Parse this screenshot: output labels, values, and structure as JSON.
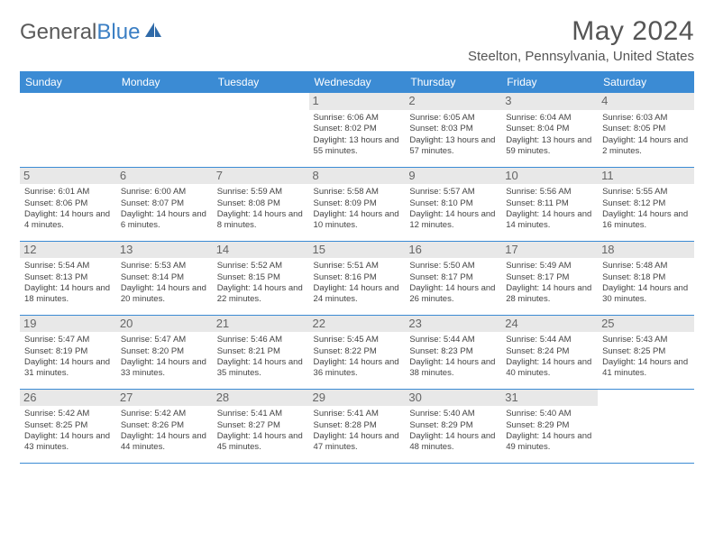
{
  "logo": {
    "text1": "General",
    "text2": "Blue"
  },
  "title": "May 2024",
  "location": "Steelton, Pennsylvania, United States",
  "calendar": {
    "type": "table",
    "header_bg": "#3b8bd4",
    "header_fg": "#ffffff",
    "border_color": "#3b8bd4",
    "daynum_bg": "#e8e8e8",
    "columns": [
      "Sunday",
      "Monday",
      "Tuesday",
      "Wednesday",
      "Thursday",
      "Friday",
      "Saturday"
    ],
    "weeks": [
      [
        null,
        null,
        null,
        {
          "d": "1",
          "sr": "Sunrise: 6:06 AM",
          "ss": "Sunset: 8:02 PM",
          "dl": "Daylight: 13 hours and 55 minutes."
        },
        {
          "d": "2",
          "sr": "Sunrise: 6:05 AM",
          "ss": "Sunset: 8:03 PM",
          "dl": "Daylight: 13 hours and 57 minutes."
        },
        {
          "d": "3",
          "sr": "Sunrise: 6:04 AM",
          "ss": "Sunset: 8:04 PM",
          "dl": "Daylight: 13 hours and 59 minutes."
        },
        {
          "d": "4",
          "sr": "Sunrise: 6:03 AM",
          "ss": "Sunset: 8:05 PM",
          "dl": "Daylight: 14 hours and 2 minutes."
        }
      ],
      [
        {
          "d": "5",
          "sr": "Sunrise: 6:01 AM",
          "ss": "Sunset: 8:06 PM",
          "dl": "Daylight: 14 hours and 4 minutes."
        },
        {
          "d": "6",
          "sr": "Sunrise: 6:00 AM",
          "ss": "Sunset: 8:07 PM",
          "dl": "Daylight: 14 hours and 6 minutes."
        },
        {
          "d": "7",
          "sr": "Sunrise: 5:59 AM",
          "ss": "Sunset: 8:08 PM",
          "dl": "Daylight: 14 hours and 8 minutes."
        },
        {
          "d": "8",
          "sr": "Sunrise: 5:58 AM",
          "ss": "Sunset: 8:09 PM",
          "dl": "Daylight: 14 hours and 10 minutes."
        },
        {
          "d": "9",
          "sr": "Sunrise: 5:57 AM",
          "ss": "Sunset: 8:10 PM",
          "dl": "Daylight: 14 hours and 12 minutes."
        },
        {
          "d": "10",
          "sr": "Sunrise: 5:56 AM",
          "ss": "Sunset: 8:11 PM",
          "dl": "Daylight: 14 hours and 14 minutes."
        },
        {
          "d": "11",
          "sr": "Sunrise: 5:55 AM",
          "ss": "Sunset: 8:12 PM",
          "dl": "Daylight: 14 hours and 16 minutes."
        }
      ],
      [
        {
          "d": "12",
          "sr": "Sunrise: 5:54 AM",
          "ss": "Sunset: 8:13 PM",
          "dl": "Daylight: 14 hours and 18 minutes."
        },
        {
          "d": "13",
          "sr": "Sunrise: 5:53 AM",
          "ss": "Sunset: 8:14 PM",
          "dl": "Daylight: 14 hours and 20 minutes."
        },
        {
          "d": "14",
          "sr": "Sunrise: 5:52 AM",
          "ss": "Sunset: 8:15 PM",
          "dl": "Daylight: 14 hours and 22 minutes."
        },
        {
          "d": "15",
          "sr": "Sunrise: 5:51 AM",
          "ss": "Sunset: 8:16 PM",
          "dl": "Daylight: 14 hours and 24 minutes."
        },
        {
          "d": "16",
          "sr": "Sunrise: 5:50 AM",
          "ss": "Sunset: 8:17 PM",
          "dl": "Daylight: 14 hours and 26 minutes."
        },
        {
          "d": "17",
          "sr": "Sunrise: 5:49 AM",
          "ss": "Sunset: 8:17 PM",
          "dl": "Daylight: 14 hours and 28 minutes."
        },
        {
          "d": "18",
          "sr": "Sunrise: 5:48 AM",
          "ss": "Sunset: 8:18 PM",
          "dl": "Daylight: 14 hours and 30 minutes."
        }
      ],
      [
        {
          "d": "19",
          "sr": "Sunrise: 5:47 AM",
          "ss": "Sunset: 8:19 PM",
          "dl": "Daylight: 14 hours and 31 minutes."
        },
        {
          "d": "20",
          "sr": "Sunrise: 5:47 AM",
          "ss": "Sunset: 8:20 PM",
          "dl": "Daylight: 14 hours and 33 minutes."
        },
        {
          "d": "21",
          "sr": "Sunrise: 5:46 AM",
          "ss": "Sunset: 8:21 PM",
          "dl": "Daylight: 14 hours and 35 minutes."
        },
        {
          "d": "22",
          "sr": "Sunrise: 5:45 AM",
          "ss": "Sunset: 8:22 PM",
          "dl": "Daylight: 14 hours and 36 minutes."
        },
        {
          "d": "23",
          "sr": "Sunrise: 5:44 AM",
          "ss": "Sunset: 8:23 PM",
          "dl": "Daylight: 14 hours and 38 minutes."
        },
        {
          "d": "24",
          "sr": "Sunrise: 5:44 AM",
          "ss": "Sunset: 8:24 PM",
          "dl": "Daylight: 14 hours and 40 minutes."
        },
        {
          "d": "25",
          "sr": "Sunrise: 5:43 AM",
          "ss": "Sunset: 8:25 PM",
          "dl": "Daylight: 14 hours and 41 minutes."
        }
      ],
      [
        {
          "d": "26",
          "sr": "Sunrise: 5:42 AM",
          "ss": "Sunset: 8:25 PM",
          "dl": "Daylight: 14 hours and 43 minutes."
        },
        {
          "d": "27",
          "sr": "Sunrise: 5:42 AM",
          "ss": "Sunset: 8:26 PM",
          "dl": "Daylight: 14 hours and 44 minutes."
        },
        {
          "d": "28",
          "sr": "Sunrise: 5:41 AM",
          "ss": "Sunset: 8:27 PM",
          "dl": "Daylight: 14 hours and 45 minutes."
        },
        {
          "d": "29",
          "sr": "Sunrise: 5:41 AM",
          "ss": "Sunset: 8:28 PM",
          "dl": "Daylight: 14 hours and 47 minutes."
        },
        {
          "d": "30",
          "sr": "Sunrise: 5:40 AM",
          "ss": "Sunset: 8:29 PM",
          "dl": "Daylight: 14 hours and 48 minutes."
        },
        {
          "d": "31",
          "sr": "Sunrise: 5:40 AM",
          "ss": "Sunset: 8:29 PM",
          "dl": "Daylight: 14 hours and 49 minutes."
        },
        null
      ]
    ]
  }
}
